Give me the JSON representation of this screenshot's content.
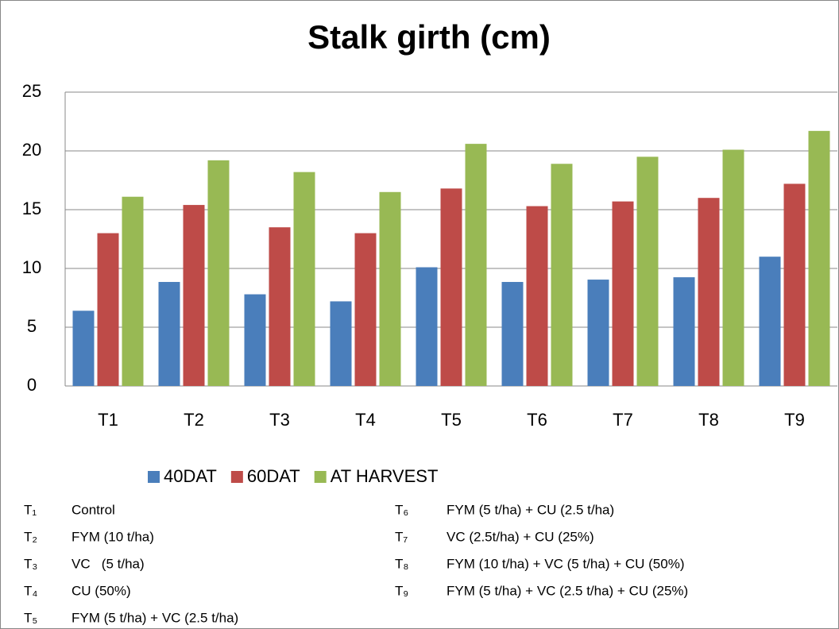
{
  "chart_data": {
    "type": "bar",
    "title": "Stalk girth (cm)",
    "categories": [
      "T1",
      "T2",
      "T3",
      "T4",
      "T5",
      "T6",
      "T7",
      "T8",
      "T9"
    ],
    "series": [
      {
        "name": "40DAT",
        "color": "#4a7ebb",
        "values": [
          6.4,
          8.85,
          7.8,
          7.2,
          10.1,
          8.85,
          9.05,
          9.25,
          11.0
        ]
      },
      {
        "name": "60DAT",
        "color": "#be4b48",
        "values": [
          13.0,
          15.4,
          13.5,
          13.0,
          16.8,
          15.3,
          15.7,
          16.0,
          17.2
        ]
      },
      {
        "name": "AT HARVEST",
        "color": "#98b954",
        "values": [
          16.1,
          19.2,
          18.2,
          16.5,
          20.6,
          18.9,
          19.5,
          20.1,
          21.7
        ]
      }
    ],
    "ylim": [
      0,
      25
    ],
    "yticks": [
      0,
      5,
      10,
      15,
      20,
      25
    ],
    "grid": true,
    "legend": "bottom"
  },
  "treatments": [
    {
      "code": "T₁",
      "name": "Control"
    },
    {
      "code": "T₂",
      "name": "FYM (10 t/ha)"
    },
    {
      "code": "T₃",
      "name": "VC   (5 t/ha)"
    },
    {
      "code": "T₄",
      "name": "CU (50%)"
    },
    {
      "code": "T₅",
      "name": "FYM (5 t/ha) + VC (2.5 t/ha)"
    },
    {
      "code": "T₆",
      "name": "FYM (5 t/ha) + CU (2.5 t/ha)"
    },
    {
      "code": "T₇",
      "name": "VC (2.5t/ha) + CU (25%)"
    },
    {
      "code": "T₈",
      "name": "FYM (10 t/ha) + VC (5 t/ha) + CU (50%)"
    },
    {
      "code": "T₉",
      "name": "FYM (5 t/ha) + VC (2.5 t/ha) + CU (25%)"
    }
  ]
}
